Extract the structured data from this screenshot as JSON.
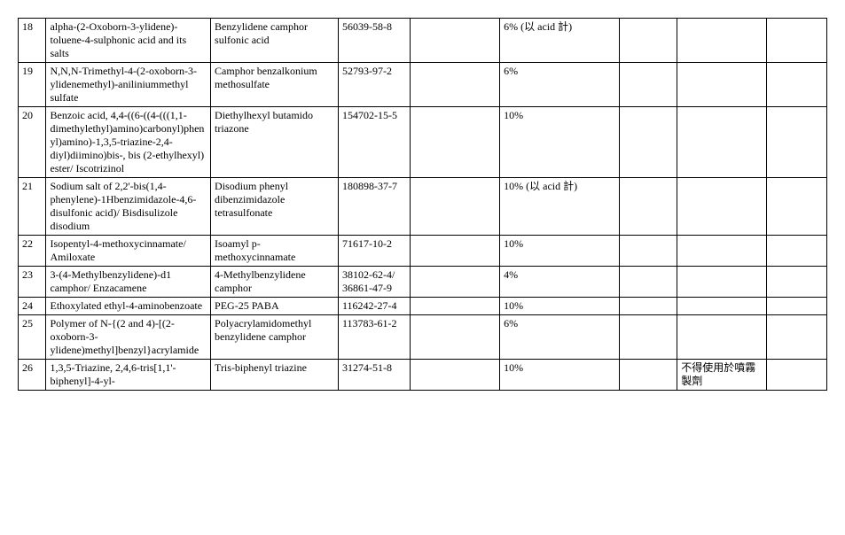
{
  "table": {
    "rows": [
      {
        "num": "18",
        "name": "alpha-(2-Oxoborn-3-ylidene)-toluene-4-sulphonic acid and its salts",
        "common": "Benzylidene camphor sulfonic acid",
        "cas": "56039-58-8",
        "c4": "",
        "conc": "6% (以 acid 計)",
        "c6": "",
        "note": "",
        "c8": ""
      },
      {
        "num": "19",
        "name": "N,N,N-Trimethyl-4-(2-oxoborn-3-ylidenemethyl)-aniliniummethyl sulfate",
        "common": "Camphor benzalkonium methosulfate",
        "cas": "52793-97-2",
        "c4": "",
        "conc": "6%",
        "c6": "",
        "note": "",
        "c8": ""
      },
      {
        "num": "20",
        "name": "Benzoic acid, 4,4-((6-((4-(((1,1-dimethylethyl)amino)carbonyl)phenyl)amino)-1,3,5-triazine-2,4-diyl)diimino)bis-, bis (2-ethylhexyl) ester/\nIscotrizinol",
        "common": "Diethylhexyl butamido triazone",
        "cas": "154702-15-5",
        "c4": "",
        "conc": "10%",
        "c6": "",
        "note": "",
        "c8": ""
      },
      {
        "num": "21",
        "name": "Sodium salt of 2,2'-bis(1,4-phenylene)-1Hbenzimidazole-4,6-disulfonic acid)/\nBisdisulizole disodium",
        "common": "Disodium phenyl dibenzimidazole tetrasulfonate",
        "cas": "180898-37-7",
        "c4": "",
        "conc": "10% (以 acid 計)",
        "c6": "",
        "note": "",
        "c8": ""
      },
      {
        "num": "22",
        "name": "Isopentyl-4-methoxycinnamate/\nAmiloxate",
        "common": "Isoamyl p-methoxycinnamate",
        "cas": "71617-10-2",
        "c4": "",
        "conc": "10%",
        "c6": "",
        "note": "",
        "c8": ""
      },
      {
        "num": "23",
        "name": "3-(4-Methylbenzylidene)-d1 camphor/\nEnzacamene",
        "common": "4-Methylbenzylidene camphor",
        "cas": "38102-62-4/\n36861-47-9",
        "c4": "",
        "conc": "4%",
        "c6": "",
        "note": "",
        "c8": ""
      },
      {
        "num": "24",
        "name": "Ethoxylated ethyl-4-aminobenzoate",
        "common": "PEG-25 PABA",
        "cas": "116242-27-4",
        "c4": "",
        "conc": "10%",
        "c6": "",
        "note": "",
        "c8": ""
      },
      {
        "num": "25",
        "name": "Polymer of N-{(2 and 4)-[(2-oxoborn-3-ylidene)methyl]benzyl}acrylamide",
        "common": "Polyacrylamidomethyl benzylidene camphor",
        "cas": "113783-61-2",
        "c4": "",
        "conc": "6%",
        "c6": "",
        "note": "",
        "c8": ""
      },
      {
        "num": "26",
        "name": "1,3,5-Triazine, 2,4,6-tris[1,1'-biphenyl]-4-yl-",
        "common": "Tris-biphenyl triazine",
        "cas": "31274-51-8",
        "c4": "",
        "conc": "10%",
        "c6": "",
        "note": "不得使用於噴霧製劑",
        "c8": ""
      }
    ]
  }
}
